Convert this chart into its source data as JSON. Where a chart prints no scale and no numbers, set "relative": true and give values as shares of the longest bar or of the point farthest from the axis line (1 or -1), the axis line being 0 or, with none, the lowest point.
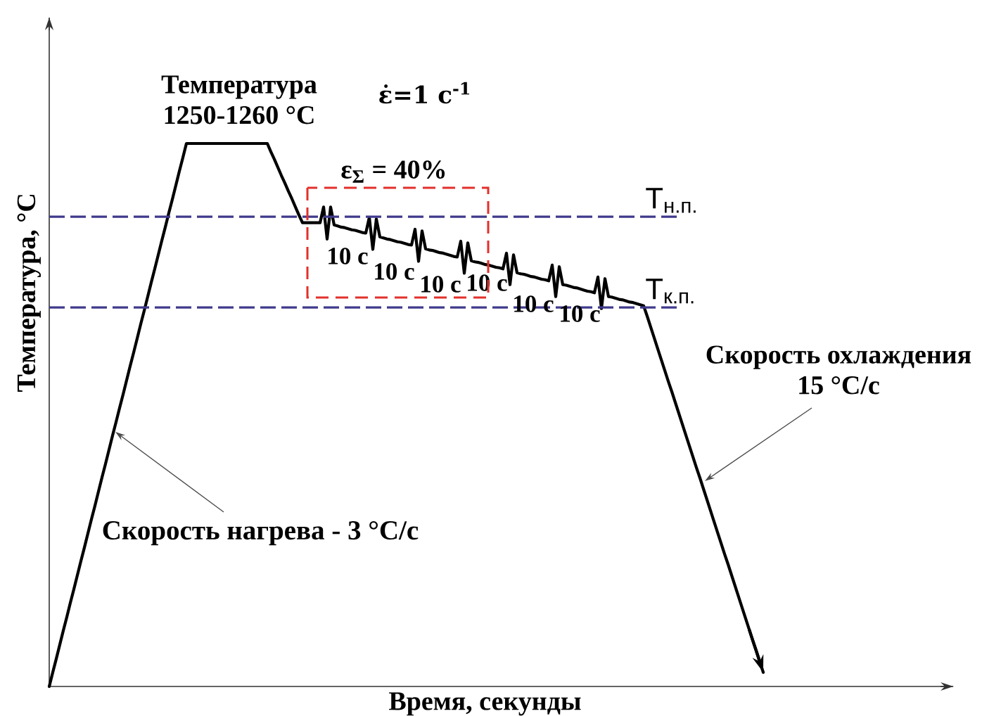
{
  "chart_data": {
    "type": "line",
    "relative": true,
    "xlabel": "Время, секунды",
    "ylabel": "Температура, °C",
    "categories": [
      null,
      null,
      null,
      null,
      null,
      null,
      null,
      null,
      null,
      null,
      null,
      null,
      null,
      null,
      null,
      null,
      null,
      null,
      null,
      null,
      null,
      null,
      null,
      null,
      null,
      null,
      null,
      null,
      null,
      null,
      null,
      null,
      null,
      null,
      null,
      null,
      null,
      null,
      null,
      null,
      null,
      null,
      null,
      null,
      null,
      null,
      null,
      null,
      null,
      null,
      null,
      null,
      null,
      null,
      null,
      null,
      null,
      null,
      null,
      null,
      null,
      null,
      null,
      null,
      null,
      null,
      null,
      null,
      null,
      null,
      null,
      null,
      null,
      null,
      null,
      null,
      null,
      null,
      null,
      null,
      null,
      null,
      null,
      null,
      null,
      null,
      null,
      null,
      null,
      null,
      null,
      null,
      null,
      null,
      null,
      null,
      null,
      null,
      null,
      null,
      null,
      null,
      null,
      null,
      null,
      null,
      null,
      null,
      null,
      null,
      null,
      null,
      null,
      null,
      null,
      null,
      null,
      null,
      null,
      null,
      null,
      null,
      null,
      null,
      null,
      null,
      null,
      null,
      null,
      null,
      null,
      null,
      null,
      null,
      null,
      null,
      null,
      null,
      null,
      null,
      null,
      null,
      null,
      null,
      null,
      null,
      null,
      null,
      null,
      null,
      null,
      null,
      null,
      null,
      null,
      null,
      null,
      null,
      null,
      null,
      null,
      null,
      null,
      null,
      null,
      null,
      null,
      null,
      null,
      null,
      null,
      null,
      null,
      null,
      null,
      null,
      null,
      null,
      null,
      null,
      null,
      null,
      null,
      null,
      null,
      null,
      null,
      null,
      null,
      null,
      null,
      null,
      null,
      null,
      null,
      null,
      null,
      null,
      null,
      null,
      null,
      null,
      null,
      null
    ],
    "series": [
      {
        "color": "#000000",
        "values": [
          0,
          0.026,
          0.051,
          0.077,
          0.103,
          0.128,
          0.154,
          0.179,
          0.205,
          0.231,
          0.256,
          0.282,
          0.308,
          0.333,
          0.359,
          0.385,
          0.41,
          0.436,
          0.462,
          0.487,
          0.513,
          0.538,
          0.564,
          0.59,
          0.615,
          0.641,
          0.667,
          0.692,
          0.718,
          0.744,
          0.769,
          0.795,
          0.821,
          0.846,
          0.872,
          0.897,
          0.923,
          0.949,
          0.974,
          1,
          1,
          1,
          1,
          1,
          1,
          1,
          1,
          1,
          1,
          1,
          1,
          1,
          1,
          1,
          1,
          1,
          1,
          1,
          1,
          1,
          1,
          1,
          1,
          0.985,
          0.971,
          0.956,
          0.941,
          0.927,
          0.912,
          0.898,
          0.883,
          0.868,
          0.854,
          0.854,
          0.854,
          0.854,
          0.854,
          0.854,
          0.883,
          0.824,
          0.883,
          0.85,
          0.848,
          0.846,
          0.845,
          0.843,
          0.841,
          0.84,
          0.838,
          0.836,
          0.835,
          0.864,
          0.805,
          0.861,
          0.828,
          0.826,
          0.824,
          0.823,
          0.821,
          0.819,
          0.818,
          0.816,
          0.814,
          0.813,
          0.842,
          0.783,
          0.839,
          0.806,
          0.804,
          0.803,
          0.801,
          0.799,
          0.798,
          0.796,
          0.794,
          0.792,
          0.791,
          0.82,
          0.761,
          0.817,
          0.784,
          0.782,
          0.781,
          0.779,
          0.777,
          0.776,
          0.774,
          0.772,
          0.771,
          0.769,
          0.798,
          0.74,
          0.795,
          0.762,
          0.76,
          0.759,
          0.757,
          0.755,
          0.754,
          0.752,
          0.75,
          0.749,
          0.747,
          0.776,
          0.718,
          0.773,
          0.74,
          0.739,
          0.737,
          0.735,
          0.734,
          0.732,
          0.73,
          0.728,
          0.727,
          0.725,
          0.754,
          0.696,
          0.751,
          0.718,
          0.717,
          0.715,
          0.713,
          0.712,
          0.71,
          0.708,
          0.707,
          0.705,
          0.703,
          0.701,
          0.682,
          0.662,
          0.642,
          0.622,
          0.602,
          0.582,
          0.562,
          0.543,
          0.523,
          0.503,
          0.483,
          0.463,
          0.443,
          0.423,
          0.403,
          0.384,
          0.364,
          0.344,
          0.324,
          0.304,
          0.284,
          0.264,
          0.244,
          0.225,
          0.205,
          0.185,
          0.165,
          0.145,
          0.125,
          0.105,
          0.085,
          0.066,
          0.046,
          0.026
        ]
      }
    ],
    "ref_lines": [
      {
        "axis": "y",
        "value": 0.865,
        "label": "T$_{н.п.}$",
        "color": "#3f3a8c",
        "line_style": "dashed"
      },
      {
        "axis": "y",
        "value": 0.698,
        "label": "T$_{к.п.}$",
        "color": "#3f3a8c",
        "line_style": "dashed"
      }
    ],
    "annotations": [
      "Температура 1250-1260 °C",
      "ε̇=1 с$^{-1}$",
      "ε$_{Σ}$ = 40%",
      "10 с",
      "10 с",
      "10 с",
      "10 с",
      "10 с",
      "10 с",
      "Скорость нагрева - 3 °C/с",
      "Скорость охлаждения 15 °C/с"
    ]
  }
}
